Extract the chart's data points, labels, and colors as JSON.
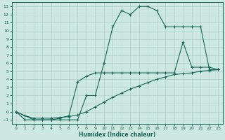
{
  "title": "",
  "xlabel": "Humidex (Indice chaleur)",
  "ylabel": "",
  "bg_color": "#cce8e0",
  "grid_color_major": "#b0d0c8",
  "grid_color_minor": "#d8eee8",
  "line_color": "#1a6858",
  "xlim": [
    -0.5,
    23.5
  ],
  "ylim": [
    -1.5,
    13.5
  ],
  "xticks": [
    0,
    1,
    2,
    3,
    4,
    5,
    6,
    7,
    8,
    9,
    10,
    11,
    12,
    13,
    14,
    15,
    16,
    17,
    18,
    19,
    20,
    21,
    22,
    23
  ],
  "yticks": [
    -1,
    0,
    1,
    2,
    3,
    4,
    5,
    6,
    7,
    8,
    9,
    10,
    11,
    12,
    13
  ],
  "line1_x": [
    0,
    1,
    2,
    3,
    4,
    5,
    6,
    7,
    8,
    9,
    10,
    11,
    12,
    13,
    14,
    15,
    16,
    17,
    18,
    19,
    20,
    21,
    22,
    23
  ],
  "line1_y": [
    0,
    -1,
    -1,
    -1,
    -1,
    -1,
    -1,
    -1,
    2,
    2,
    6,
    10.5,
    12.5,
    12,
    13,
    13,
    12.5,
    10.5,
    10.5,
    10.5,
    10.5,
    10.5,
    5.2,
    5.2
  ],
  "line2_x": [
    0,
    2,
    3,
    4,
    5,
    6,
    7,
    8,
    9,
    10,
    11,
    12,
    13,
    14,
    15,
    16,
    17,
    18,
    19,
    20,
    21,
    22,
    23
  ],
  "line2_y": [
    0,
    -1,
    -1,
    -1,
    -0.8,
    -0.5,
    3.7,
    4.4,
    4.8,
    4.8,
    4.8,
    4.8,
    4.8,
    4.8,
    4.8,
    4.8,
    4.8,
    4.8,
    8.6,
    5.5,
    5.5,
    5.5,
    5.2
  ],
  "line3_x": [
    0,
    1,
    2,
    3,
    4,
    5,
    6,
    7,
    8,
    9,
    10,
    11,
    12,
    13,
    14,
    15,
    16,
    17,
    18,
    19,
    20,
    21,
    22,
    23
  ],
  "line3_y": [
    0,
    -0.5,
    -0.8,
    -0.8,
    -0.8,
    -0.7,
    -0.6,
    -0.4,
    0.0,
    0.6,
    1.2,
    1.8,
    2.3,
    2.8,
    3.2,
    3.6,
    4.0,
    4.3,
    4.6,
    4.7,
    4.8,
    5.0,
    5.1,
    5.2
  ]
}
